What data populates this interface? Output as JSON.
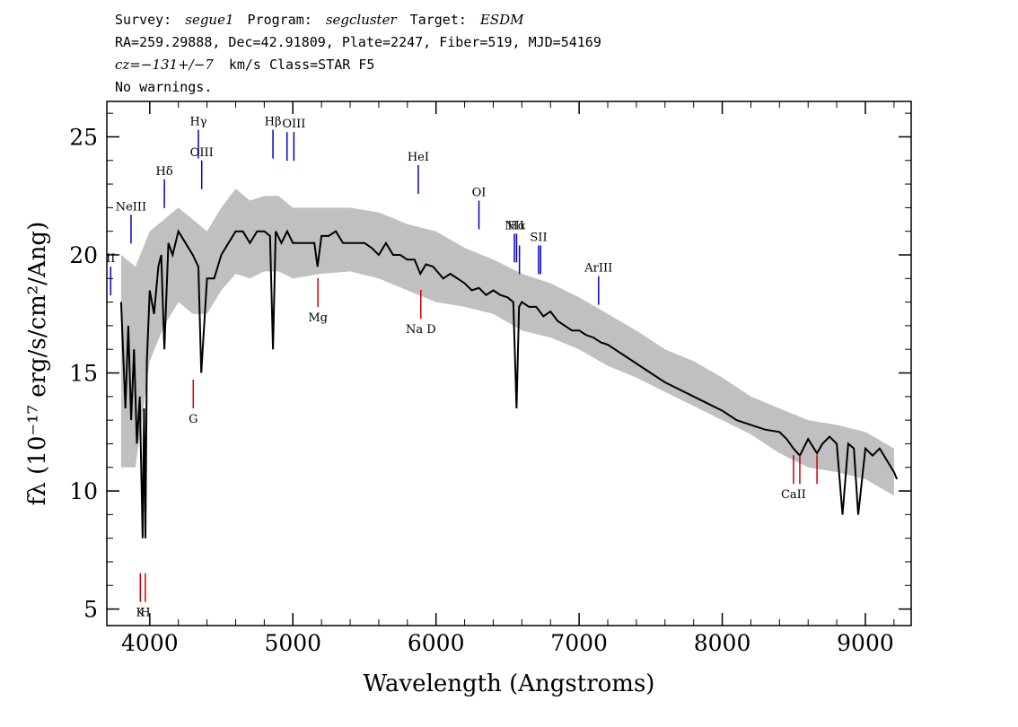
{
  "header": {
    "survey_label": "Survey:",
    "survey": "segue1",
    "program_label": "Program:",
    "program": "segcluster",
    "target_label": "Target:",
    "target": "ESDM",
    "line2": "RA=259.29888, Dec=42.91809, Plate=2247, Fiber=519, MJD=54169",
    "cz": "cz=−131+/−7",
    "cz_unit_class": "km/s Class=STAR F5",
    "warnings": "No warnings."
  },
  "chart_data": {
    "type": "line",
    "xlabel": "Wavelength (Angstroms)",
    "ylabel": "fλ (10⁻¹⁷ erg/s/cm²/Ang)",
    "xlim": [
      3700,
      9320
    ],
    "ylim": [
      4.3,
      26.5
    ],
    "xticks": [
      4000,
      5000,
      6000,
      7000,
      8000,
      9000
    ],
    "yticks": [
      5,
      10,
      15,
      20,
      25
    ],
    "grid": false,
    "colors": {
      "spectrum": "#000000",
      "error_band": "#c0c0c0",
      "emission": "#0000cc",
      "absorption": "#cc0000"
    },
    "series": [
      {
        "style": "smoothed-black",
        "x": [
          3800,
          3830,
          3850,
          3870,
          3890,
          3910,
          3930,
          3950,
          3960,
          3970,
          3980,
          4000,
          4030,
          4060,
          4080,
          4102,
          4130,
          4160,
          4200,
          4250,
          4300,
          4340,
          4360,
          4400,
          4450,
          4500,
          4550,
          4600,
          4650,
          4700,
          4750,
          4800,
          4840,
          4861,
          4880,
          4920,
          4960,
          5000,
          5050,
          5100,
          5150,
          5172,
          5200,
          5250,
          5300,
          5350,
          5400,
          5450,
          5500,
          5550,
          5600,
          5650,
          5700,
          5750,
          5800,
          5850,
          5890,
          5930,
          5980,
          6050,
          6100,
          6150,
          6200,
          6250,
          6300,
          6350,
          6400,
          6450,
          6500,
          6540,
          6563,
          6580,
          6600,
          6650,
          6700,
          6750,
          6800,
          6850,
          6900,
          6950,
          7000,
          7050,
          7100,
          7150,
          7200,
          7300,
          7400,
          7500,
          7600,
          7700,
          7800,
          7900,
          8000,
          8100,
          8200,
          8300,
          8400,
          8450,
          8498,
          8542,
          8600,
          8662,
          8700,
          8750,
          8800,
          8840,
          8880,
          8920,
          8950,
          9000,
          9050,
          9100,
          9150,
          9200,
          9220
        ],
        "y": [
          18.0,
          13.5,
          17.0,
          13.0,
          16.0,
          12.0,
          14.0,
          8.0,
          13.5,
          8.0,
          15.5,
          18.5,
          17.5,
          19.5,
          20.0,
          16.0,
          20.5,
          20.0,
          21.0,
          20.5,
          20.0,
          19.5,
          15.0,
          19.0,
          19.0,
          20.0,
          20.5,
          21.0,
          21.0,
          20.5,
          21.0,
          21.0,
          20.8,
          16.0,
          21.0,
          20.5,
          21.0,
          20.5,
          20.5,
          20.5,
          20.5,
          19.5,
          20.8,
          20.8,
          21.0,
          20.5,
          20.5,
          20.5,
          20.5,
          20.3,
          20.0,
          20.5,
          20.0,
          20.0,
          19.8,
          19.8,
          19.2,
          19.6,
          19.5,
          19.0,
          19.2,
          19.0,
          18.8,
          18.5,
          18.6,
          18.3,
          18.5,
          18.3,
          18.2,
          18.0,
          13.5,
          17.8,
          18.0,
          17.8,
          17.8,
          17.4,
          17.6,
          17.2,
          17.0,
          16.8,
          16.8,
          16.6,
          16.5,
          16.3,
          16.2,
          15.8,
          15.4,
          15.0,
          14.6,
          14.3,
          14.0,
          13.7,
          13.4,
          13.0,
          12.8,
          12.6,
          12.5,
          12.2,
          11.8,
          11.5,
          12.2,
          11.6,
          12.0,
          12.3,
          12.0,
          9.0,
          12.0,
          11.8,
          9.0,
          11.8,
          11.5,
          11.8,
          11.3,
          10.8,
          10.5
        ]
      },
      {
        "style": "grey-band-upper",
        "x": [
          3800,
          3900,
          4000,
          4100,
          4200,
          4300,
          4400,
          4500,
          4600,
          4700,
          4800,
          4900,
          5000,
          5200,
          5400,
          5600,
          5800,
          6000,
          6200,
          6400,
          6600,
          6800,
          7000,
          7200,
          7400,
          7600,
          7800,
          8000,
          8200,
          8400,
          8600,
          8800,
          9000,
          9200
        ],
        "y": [
          20.0,
          19.5,
          21.0,
          21.5,
          22.0,
          21.5,
          21.0,
          22.0,
          22.8,
          22.3,
          22.5,
          22.5,
          22.0,
          22.0,
          22.0,
          21.8,
          21.3,
          21.0,
          20.3,
          19.8,
          19.2,
          18.8,
          18.2,
          17.5,
          16.8,
          16.0,
          15.5,
          14.8,
          14.0,
          13.5,
          13.0,
          12.8,
          12.5,
          11.8
        ]
      },
      {
        "style": "grey-band-lower",
        "x": [
          3800,
          3900,
          4000,
          4100,
          4200,
          4300,
          4400,
          4500,
          4600,
          4700,
          4800,
          4900,
          5000,
          5200,
          5400,
          5600,
          5800,
          6000,
          6200,
          6400,
          6600,
          6800,
          7000,
          7200,
          7400,
          7600,
          7800,
          8000,
          8200,
          8400,
          8600,
          8800,
          9000,
          9200
        ],
        "y": [
          11.0,
          11.0,
          15.5,
          17.0,
          18.0,
          17.5,
          17.5,
          18.5,
          19.2,
          19.0,
          19.3,
          19.3,
          19.0,
          19.2,
          19.3,
          19.0,
          18.5,
          18.0,
          17.8,
          17.5,
          16.8,
          16.5,
          16.0,
          15.3,
          14.8,
          14.2,
          13.6,
          13.0,
          12.4,
          11.6,
          11.0,
          10.8,
          10.5,
          9.8
        ]
      }
    ],
    "lines": [
      {
        "label": "OII",
        "wave": 3727,
        "kind": "emission",
        "y": 19.5,
        "shown": "II"
      },
      {
        "label": "NeIII",
        "wave": 3869,
        "kind": "emission",
        "y": 21.7
      },
      {
        "label": "Hδ",
        "wave": 4102,
        "kind": "emission",
        "y": 23.2
      },
      {
        "label": "Hγ",
        "wave": 4340,
        "kind": "emission",
        "y": 25.3
      },
      {
        "label": "OIII",
        "wave": 4363,
        "kind": "emission",
        "y": 24.0
      },
      {
        "label": "Hβ",
        "wave": 4861,
        "kind": "emission",
        "y": 25.3
      },
      {
        "label": "OIII",
        "wave": 4959,
        "kind": "emission",
        "y": 25.2,
        "hide_label": true
      },
      {
        "label": "OIII",
        "wave": 5007,
        "kind": "emission",
        "y": 25.2
      },
      {
        "label": "HeI",
        "wave": 5876,
        "kind": "emission",
        "y": 23.8
      },
      {
        "label": "OI",
        "wave": 6300,
        "kind": "emission",
        "y": 22.3
      },
      {
        "label": "NII",
        "wave": 6548,
        "kind": "emission",
        "y": 20.9
      },
      {
        "label": "Hα",
        "wave": 6563,
        "kind": "emission",
        "y": 20.9
      },
      {
        "label": "NII",
        "wave": 6583,
        "kind": "emission",
        "y": 20.4,
        "hide_label": true
      },
      {
        "label": "SII",
        "wave": 6717,
        "kind": "emission",
        "y": 20.4
      },
      {
        "label": "SII",
        "wave": 6731,
        "kind": "emission",
        "y": 20.4,
        "hide_label": true
      },
      {
        "label": "ArIII",
        "wave": 7136,
        "kind": "emission",
        "y": 19.1
      },
      {
        "label": "K",
        "wave": 3934,
        "kind": "absorption",
        "y": 5.3
      },
      {
        "label": "H",
        "wave": 3969,
        "kind": "absorption",
        "y": 5.3
      },
      {
        "label": "G",
        "wave": 4304,
        "kind": "absorption",
        "y": 13.5
      },
      {
        "label": "Mg",
        "wave": 5175,
        "kind": "absorption",
        "y": 17.8
      },
      {
        "label": "Na D",
        "wave": 5894,
        "kind": "absorption",
        "y": 17.3
      },
      {
        "label": "CaII",
        "wave": 8498,
        "kind": "absorption",
        "y": 10.3
      },
      {
        "label": "CaII",
        "wave": 8542,
        "kind": "absorption",
        "y": 10.3,
        "hide_label": true
      },
      {
        "label": "CaII",
        "wave": 8662,
        "kind": "absorption",
        "y": 10.3,
        "hide_label": true
      }
    ]
  }
}
